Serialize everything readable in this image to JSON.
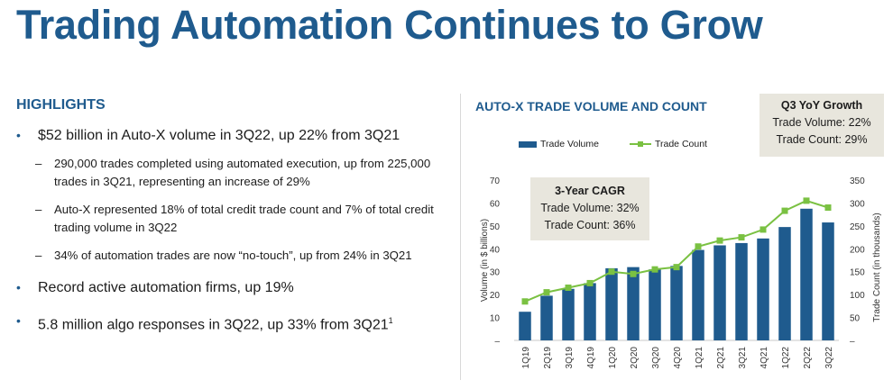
{
  "title": "Trading Automation Continues to Grow",
  "highlights": {
    "heading": "HIGHLIGHTS",
    "bullet1": "$52 billion in Auto-X volume in 3Q22, up 22% from 3Q21",
    "sub1": "290,000 trades completed using automated execution, up from 225,000 trades in 3Q21, representing an increase of 29%",
    "sub2": "Auto-X represented 18% of total credit trade count and 7% of total credit trading volume in 3Q22",
    "sub3": "34% of automation trades are now “no-touch”, up from 24% in 3Q21",
    "bullet2": "Record active automation firms, up 19%",
    "bullet3": "5.8 million algo responses in 3Q22, up 33% from 3Q21",
    "bullet3_sup": "1",
    "bullet_glyph": "•",
    "dash_glyph": "–"
  },
  "callout": {
    "title": "Q3 YoY Growth",
    "line1": "Trade Volume: 22%",
    "line2": "Trade Count: 29%"
  },
  "cagr": {
    "title": "3-Year CAGR",
    "line1": "Trade Volume: 32%",
    "line2": "Trade Count: 36%"
  },
  "colors": {
    "bar": "#1f5b8e",
    "line": "#7ac142",
    "accent": "#1f5b8e"
  },
  "chart_data": {
    "type": "bar",
    "title": "AUTO-X TRADE VOLUME AND COUNT",
    "categories": [
      "1Q19",
      "2Q19",
      "3Q19",
      "4Q19",
      "1Q20",
      "2Q20",
      "3Q20",
      "4Q20",
      "1Q21",
      "2Q21",
      "3Q21",
      "4Q21",
      "1Q22",
      "2Q22",
      "3Q22"
    ],
    "series": [
      {
        "name": "Trade Volume",
        "type": "bar",
        "axis": "left",
        "values": [
          12.5,
          19.5,
          22.5,
          25,
          31.5,
          32,
          31,
          32.5,
          39.5,
          41.5,
          42.5,
          44.5,
          49.5,
          57.5,
          51.5
        ]
      },
      {
        "name": "Trade Count",
        "type": "line",
        "axis": "right",
        "values": [
          85,
          105,
          115,
          125,
          150,
          145,
          155,
          160,
          205,
          218,
          225,
          242,
          283,
          305,
          290
        ]
      }
    ],
    "ylabel": "Volume (in $ billions)",
    "y2label": "Trade Count (in thousands)",
    "ylim": [
      0,
      70
    ],
    "y2lim": [
      0,
      350
    ],
    "yticks": [
      10,
      20,
      30,
      40,
      50,
      60,
      70
    ],
    "y2ticks": [
      50,
      100,
      150,
      200,
      250,
      300,
      350
    ],
    "legend_position": "top-left"
  }
}
